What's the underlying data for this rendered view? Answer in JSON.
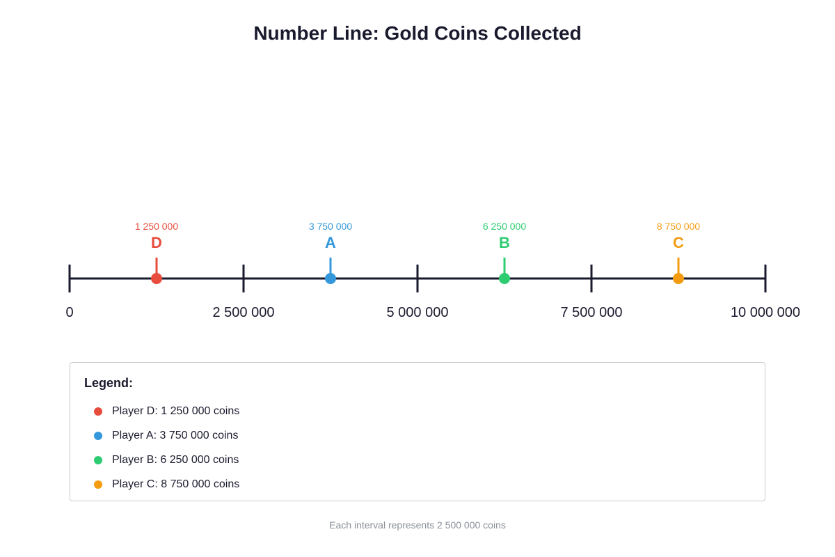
{
  "chart_data": {
    "type": "number-line",
    "title": "Number Line: Gold Coins Collected",
    "xlim": [
      0,
      10000000
    ],
    "ticks": [
      {
        "value": 0,
        "label": "0"
      },
      {
        "value": 2500000,
        "label": "2 500 000"
      },
      {
        "value": 5000000,
        "label": "5 000 000"
      },
      {
        "value": 7500000,
        "label": "7 500 000"
      },
      {
        "value": 10000000,
        "label": "10 000 000"
      }
    ],
    "points": [
      {
        "letter": "D",
        "value": 1250000,
        "value_label": "1 250 000",
        "color": "#e74c3c"
      },
      {
        "letter": "A",
        "value": 3750000,
        "value_label": "3 750 000",
        "color": "#3498db"
      },
      {
        "letter": "B",
        "value": 6250000,
        "value_label": "6 250 000",
        "color": "#2ecc71"
      },
      {
        "letter": "C",
        "value": 8750000,
        "value_label": "8 750 000",
        "color": "#f39c12"
      }
    ]
  },
  "legend": {
    "title": "Legend:",
    "items": [
      {
        "text": "Player D: 1 250 000 coins",
        "color": "#e74c3c"
      },
      {
        "text": "Player A: 3 750 000 coins",
        "color": "#3498db"
      },
      {
        "text": "Player B: 6 250 000 coins",
        "color": "#2ecc71"
      },
      {
        "text": "Player C: 8 750 000 coins",
        "color": "#f39c12"
      }
    ]
  },
  "footnote": "Each interval represents 2 500 000 coins",
  "colors": {
    "axis": "#1a1a2e",
    "text": "#1a1a2e",
    "muted": "#8a8f98"
  }
}
